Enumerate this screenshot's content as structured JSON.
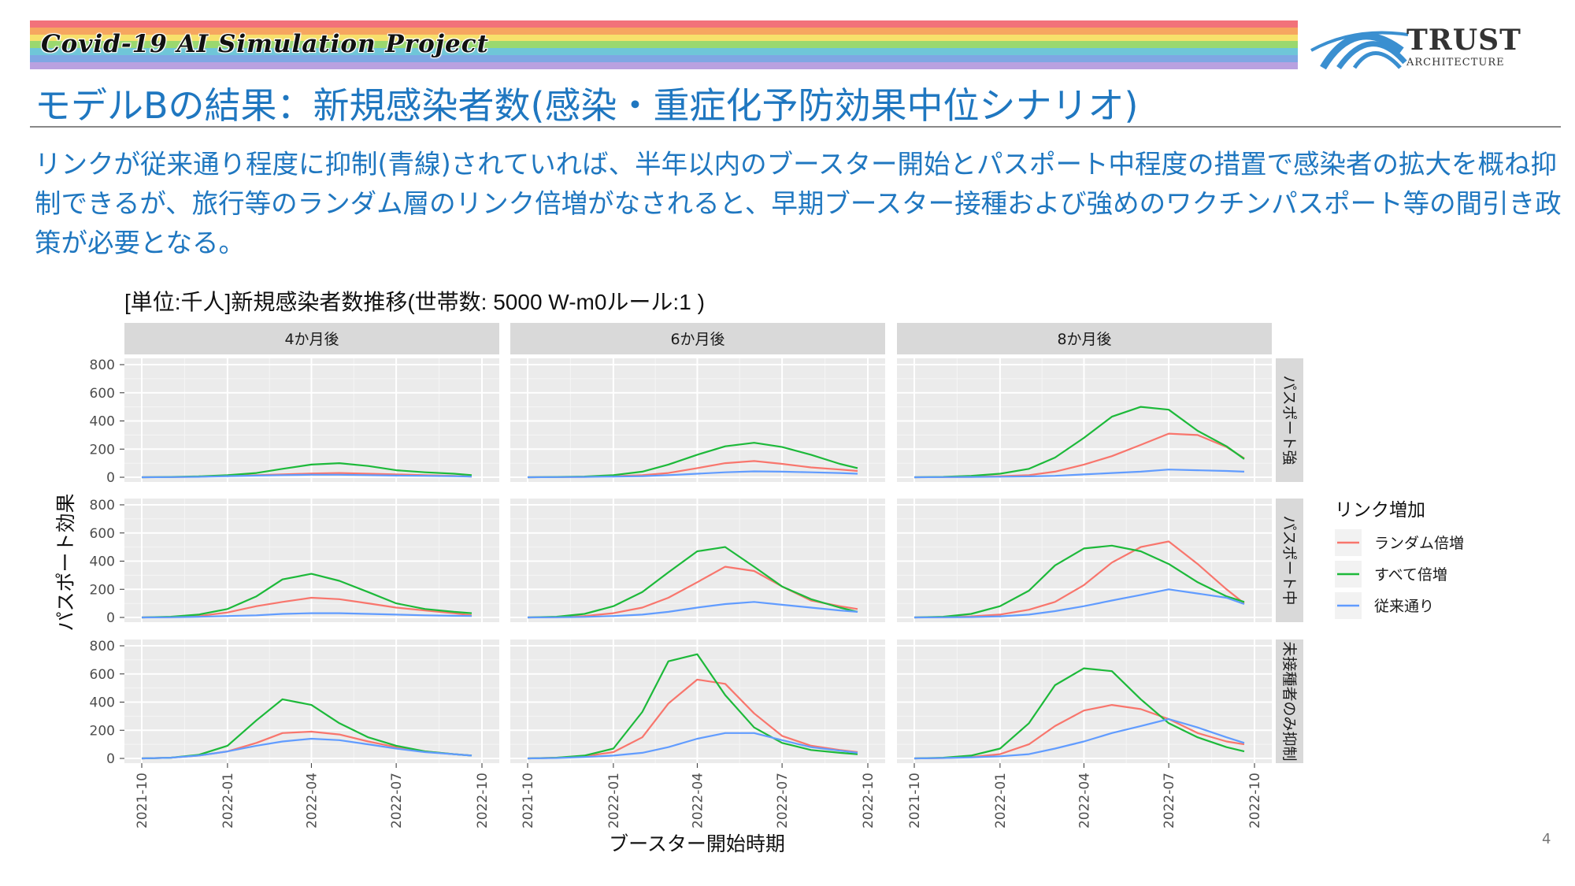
{
  "banner": {
    "title": "Covid-19 AI Simulation Project",
    "stripe_colors": [
      "#F2727A",
      "#F6A660",
      "#F7E06B",
      "#9AD86F",
      "#6FC6D8",
      "#7FA7E3",
      "#B9A1E0"
    ]
  },
  "logo": {
    "name": "TRUST",
    "sub": "ARCHITECTURE",
    "color": "#3A8FD0"
  },
  "heading": "モデルBの結果：新規感染者数(感染・重症化予防効果中位シナリオ)",
  "lead": "リンクが従来通り程度に抑制(青線)されていれば、半年以内のブースター開始とパスポート中程度の措置で感染者の拡大を概ね抑制できるが、旅行等のランダム層のリンク倍増がなされると、早期ブースター接種および強めのワクチンパスポート等の間引き政策が必要となる。",
  "slide_number": "4",
  "chart_data": {
    "type": "line",
    "title": "[単位:千人]新規感染者数推移(世帯数: 5000 W-m0ルール:1 )",
    "xlabel": "ブースター開始時期",
    "ylabel": "パスポート効果",
    "x_ticks": [
      "2021-10",
      "2022-01",
      "2022-04",
      "2022-07",
      "2022-10"
    ],
    "xlim": [
      "2021-10-01",
      "2022-10-01"
    ],
    "y_ticks": [
      0,
      200,
      400,
      600,
      800
    ],
    "ylim": [
      0,
      800
    ],
    "grid": true,
    "col_facets": [
      "4か月後",
      "6か月後",
      "8か月後"
    ],
    "row_facets": [
      "パスポート強",
      "パスポート中",
      "未接種者のみ抑制"
    ],
    "legend": {
      "title": "リンク増加",
      "position": "right",
      "items": [
        {
          "label": "ランダム倍増",
          "color": "#F8766D"
        },
        {
          "label": "すべて倍増",
          "color": "#1DB93A"
        },
        {
          "label": "従来通り",
          "color": "#619CFF"
        }
      ]
    },
    "x_dates": [
      "2021-10-01",
      "2021-11-01",
      "2021-12-01",
      "2022-01-01",
      "2022-02-01",
      "2022-03-01",
      "2022-04-01",
      "2022-05-01",
      "2022-06-01",
      "2022-07-01",
      "2022-08-01",
      "2022-09-01",
      "2022-09-20"
    ],
    "panels": [
      {
        "row": 0,
        "col": 0,
        "series": {
          "ランダム倍増": [
            0,
            1,
            4,
            10,
            15,
            20,
            27,
            30,
            25,
            20,
            15,
            10,
            5
          ],
          "すべて倍増": [
            0,
            2,
            6,
            15,
            30,
            60,
            90,
            100,
            80,
            50,
            35,
            25,
            15
          ],
          "従来通り": [
            0,
            1,
            3,
            8,
            12,
            15,
            18,
            18,
            15,
            12,
            10,
            8,
            5
          ]
        }
      },
      {
        "row": 0,
        "col": 1,
        "series": {
          "ランダム倍増": [
            0,
            1,
            3,
            8,
            15,
            30,
            65,
            100,
            115,
            95,
            70,
            55,
            45
          ],
          "すべて倍増": [
            0,
            2,
            5,
            15,
            40,
            90,
            160,
            220,
            245,
            215,
            160,
            95,
            65
          ],
          "従来通り": [
            0,
            1,
            2,
            5,
            8,
            15,
            25,
            35,
            42,
            40,
            35,
            30,
            25
          ]
        }
      },
      {
        "row": 0,
        "col": 2,
        "series": {
          "ランダム倍増": [
            0,
            1,
            3,
            8,
            15,
            40,
            90,
            150,
            230,
            310,
            300,
            215,
            135
          ],
          "すべて倍増": [
            0,
            3,
            10,
            25,
            60,
            140,
            280,
            430,
            500,
            480,
            330,
            220,
            130
          ],
          "従来通り": [
            0,
            1,
            2,
            4,
            6,
            10,
            20,
            30,
            40,
            55,
            50,
            45,
            40
          ]
        }
      },
      {
        "row": 1,
        "col": 0,
        "series": {
          "ランダム倍増": [
            0,
            3,
            10,
            35,
            80,
            110,
            140,
            130,
            100,
            70,
            50,
            30,
            15
          ],
          "すべて倍増": [
            0,
            5,
            20,
            60,
            150,
            270,
            310,
            260,
            180,
            100,
            60,
            40,
            30
          ],
          "従来通り": [
            0,
            1,
            5,
            10,
            15,
            25,
            30,
            30,
            25,
            20,
            15,
            12,
            10
          ]
        }
      },
      {
        "row": 1,
        "col": 1,
        "series": {
          "ランダム倍増": [
            0,
            3,
            10,
            30,
            70,
            140,
            250,
            360,
            330,
            220,
            120,
            80,
            60
          ],
          "すべて倍増": [
            0,
            5,
            25,
            80,
            180,
            320,
            470,
            500,
            360,
            220,
            130,
            70,
            40
          ],
          "従来通り": [
            0,
            1,
            4,
            10,
            20,
            40,
            70,
            95,
            110,
            90,
            70,
            50,
            40
          ]
        }
      },
      {
        "row": 1,
        "col": 2,
        "series": {
          "ランダム倍増": [
            0,
            2,
            8,
            20,
            55,
            110,
            230,
            390,
            500,
            540,
            380,
            200,
            100
          ],
          "すべて倍増": [
            0,
            5,
            25,
            80,
            190,
            370,
            490,
            510,
            470,
            380,
            250,
            150,
            110
          ],
          "従来通り": [
            0,
            1,
            3,
            8,
            20,
            45,
            80,
            120,
            160,
            200,
            170,
            140,
            95
          ]
        }
      },
      {
        "row": 2,
        "col": 0,
        "series": {
          "ランダム倍増": [
            0,
            5,
            20,
            50,
            110,
            180,
            190,
            170,
            120,
            80,
            50,
            30,
            20
          ],
          "すべて倍増": [
            0,
            5,
            25,
            90,
            270,
            420,
            380,
            250,
            150,
            90,
            50,
            30,
            20
          ],
          "従来通り": [
            0,
            5,
            20,
            50,
            90,
            120,
            140,
            130,
            100,
            70,
            45,
            30,
            20
          ]
        }
      },
      {
        "row": 2,
        "col": 1,
        "series": {
          "ランダム倍増": [
            0,
            5,
            15,
            45,
            150,
            390,
            560,
            530,
            320,
            160,
            90,
            60,
            45
          ],
          "すべて倍増": [
            0,
            5,
            20,
            70,
            330,
            690,
            740,
            450,
            220,
            110,
            60,
            40,
            30
          ],
          "従来通り": [
            0,
            3,
            10,
            20,
            40,
            80,
            140,
            180,
            180,
            130,
            80,
            55,
            40
          ]
        }
      },
      {
        "row": 2,
        "col": 2,
        "series": {
          "ランダム倍増": [
            0,
            3,
            10,
            30,
            100,
            230,
            340,
            380,
            350,
            280,
            180,
            120,
            100
          ],
          "すべて倍増": [
            0,
            5,
            20,
            70,
            250,
            520,
            640,
            620,
            420,
            250,
            150,
            80,
            50
          ],
          "従来通り": [
            0,
            3,
            8,
            15,
            30,
            70,
            120,
            180,
            230,
            280,
            220,
            150,
            110
          ]
        }
      }
    ]
  }
}
